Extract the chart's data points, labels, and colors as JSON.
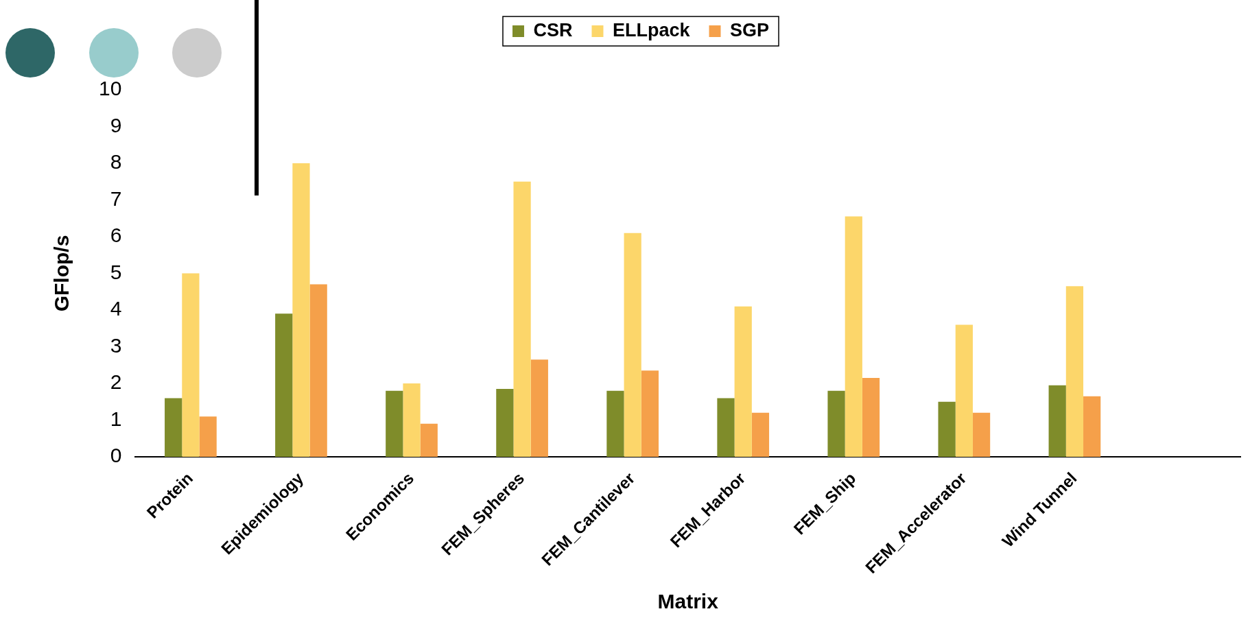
{
  "chart_data": {
    "type": "bar",
    "xlabel": "Matrix",
    "ylabel": "GFlop/s",
    "categories": [
      "Protein",
      "Epidemiology",
      "Economics",
      "FEM_Spheres",
      "FEM_Cantilever",
      "FEM_Harbor",
      "FEM_Ship",
      "FEM_Accelerator",
      "Wind Tunnel",
      null
    ],
    "series": [
      {
        "name": "CSR",
        "color": "#7f8c2a",
        "values": [
          1.6,
          3.9,
          1.8,
          1.85,
          1.8,
          1.6,
          1.8,
          1.5,
          1.95,
          null
        ]
      },
      {
        "name": "ELLpack",
        "color": "#fcd66a",
        "values": [
          5.0,
          8.0,
          2.0,
          7.5,
          6.1,
          4.1,
          6.55,
          3.6,
          4.65,
          null
        ]
      },
      {
        "name": "SGP",
        "color": "#f5a04a",
        "values": [
          1.1,
          4.7,
          0.9,
          2.65,
          2.35,
          1.2,
          2.15,
          1.2,
          1.65,
          null
        ]
      }
    ],
    "ylim": [
      0,
      10
    ],
    "yticks": [
      0,
      1,
      2,
      3,
      4,
      5,
      6,
      7,
      8,
      9,
      10
    ],
    "grid": false,
    "legend": "top"
  }
}
